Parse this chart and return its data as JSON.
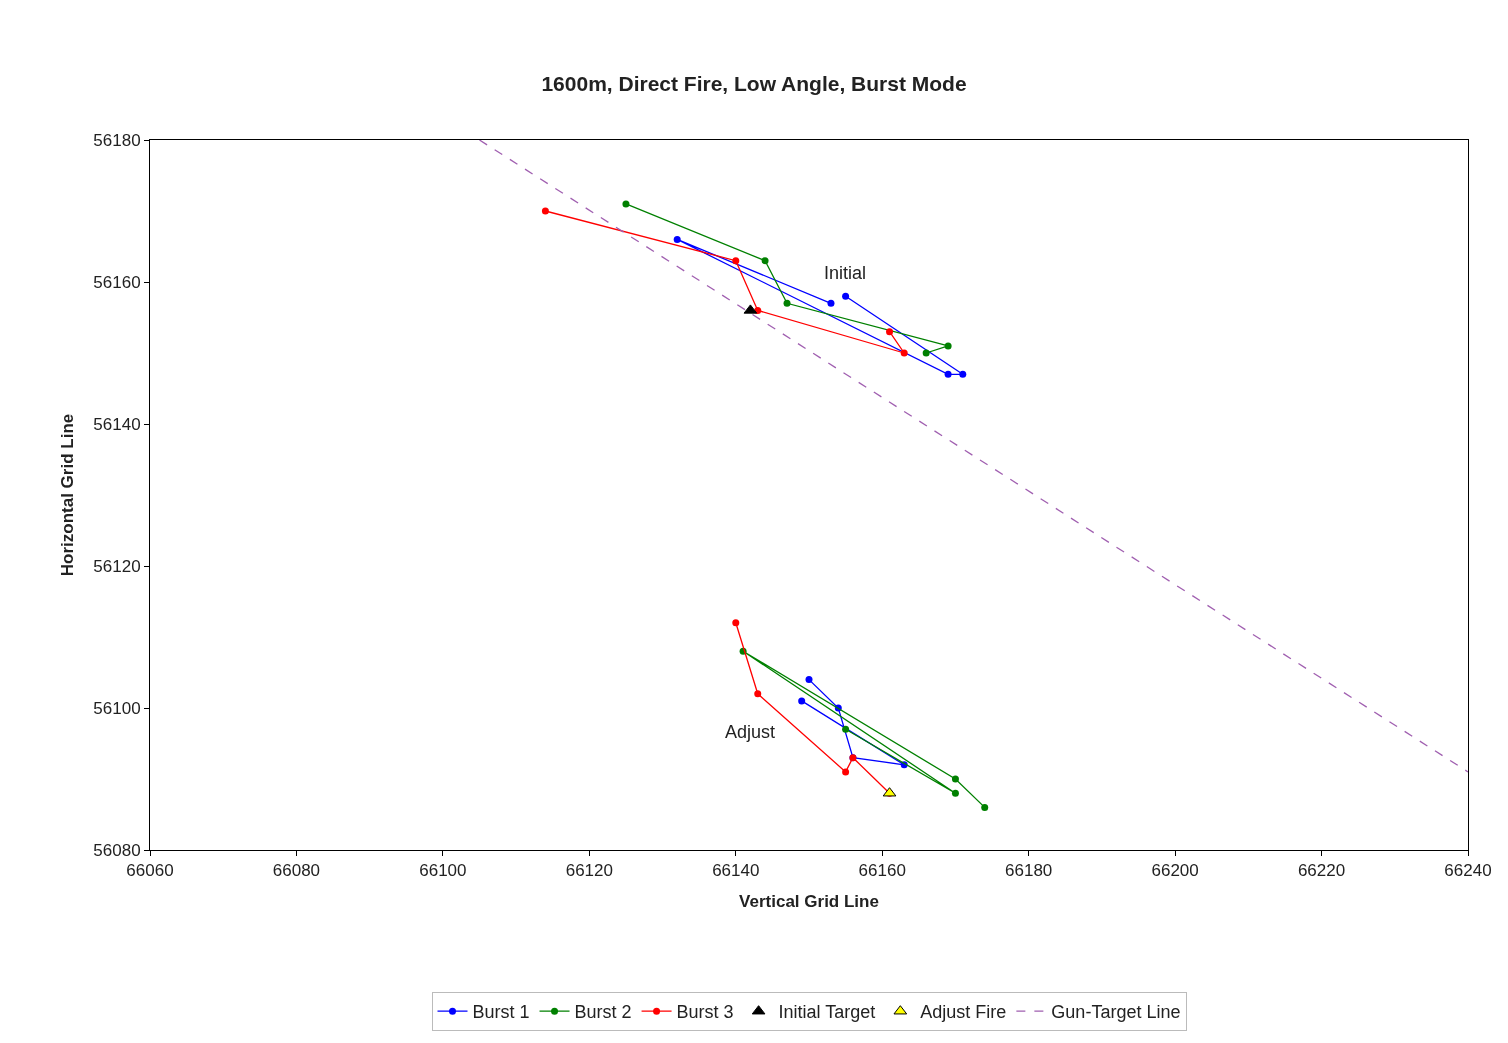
{
  "chart_data": {
    "type": "line",
    "title": "1600m, Direct Fire, Low Angle, Burst Mode",
    "xlabel": "Vertical Grid Line",
    "ylabel": "Horizontal Grid Line",
    "xlim": [
      66060,
      66240
    ],
    "xticks": [
      66060,
      66080,
      66100,
      66120,
      66140,
      66160,
      66180,
      66200,
      66220,
      66240
    ],
    "ylim": [
      56080,
      56180
    ],
    "yticks": [
      56080,
      56100,
      56120,
      56140,
      56160,
      56180
    ],
    "legend": "bottom",
    "annotations": [
      "Initial",
      "Adjust"
    ],
    "series": [
      {
        "name": "Burst 1",
        "color": "#0000ff",
        "marker": "circle",
        "line_style": "solid",
        "x": [
          66153,
          66132,
          66169,
          66171,
          66155,
          null,
          66149,
          66163,
          66156,
          66154,
          66150
        ],
        "values": [
          56157,
          56166,
          56147,
          56147,
          56158,
          null,
          56101,
          56092,
          56093,
          56100,
          56104
        ]
      },
      {
        "name": "Burst 2",
        "color": "#008000",
        "marker": "circle",
        "line_style": "solid",
        "x": [
          66125,
          66144,
          66147,
          66169,
          66166,
          null,
          66155,
          66170,
          66141,
          66170,
          66174
        ],
        "values": [
          56171,
          56163,
          56157,
          56151,
          56150,
          null,
          56097,
          56088,
          56108,
          56090,
          56086
        ]
      },
      {
        "name": "Burst 3",
        "color": "#ff0000",
        "marker": "circle",
        "line_style": "solid",
        "x": [
          66114,
          66140,
          66143,
          66163,
          66161,
          null,
          66140,
          66143,
          66155,
          66156,
          66161
        ],
        "values": [
          56170,
          56163,
          56156,
          56150,
          56153,
          null,
          56112,
          56102,
          56091,
          56093,
          56088
        ]
      },
      {
        "name": "Initial Target",
        "type": "scatter",
        "color": "#000000",
        "marker": "triangle",
        "x": [
          66142
        ],
        "values": [
          56156
        ]
      },
      {
        "name": "Adjust Fire",
        "type": "scatter",
        "color": "#ffff00",
        "marker": "triangle",
        "x": [
          66161
        ],
        "values": [
          56088
        ]
      },
      {
        "name": "Gun-Target Line",
        "color": "#a05fb0",
        "marker": "none",
        "line_style": "dashed",
        "x": [
          66105,
          66240
        ],
        "values": [
          56180,
          56091
        ]
      }
    ]
  }
}
